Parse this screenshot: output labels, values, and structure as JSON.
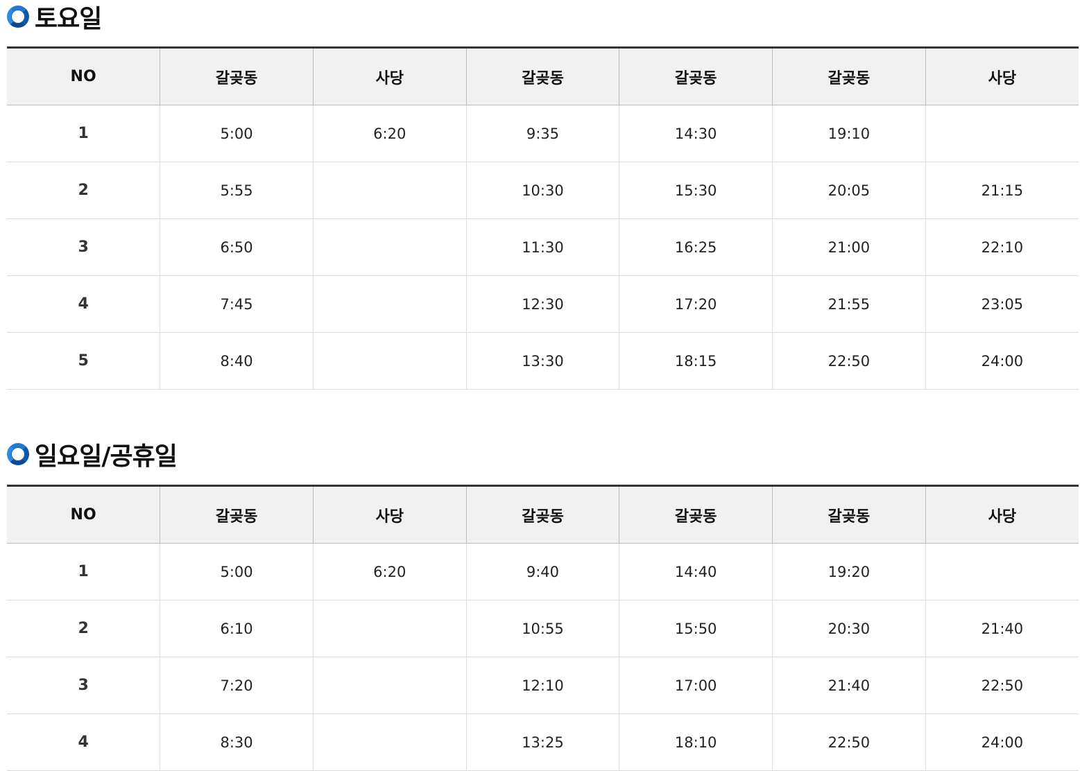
{
  "sections": [
    {
      "title": "토요일",
      "icon": "ring-bullet-icon",
      "headers": [
        "NO",
        "갈곶동",
        "사당",
        "갈곶동",
        "갈곶동",
        "갈곶동",
        "사당"
      ],
      "rows": [
        [
          "1",
          "5:00",
          "6:20",
          "9:35",
          "14:30",
          "19:10",
          ""
        ],
        [
          "2",
          "5:55",
          "",
          "10:30",
          "15:30",
          "20:05",
          "21:15"
        ],
        [
          "3",
          "6:50",
          "",
          "11:30",
          "16:25",
          "21:00",
          "22:10"
        ],
        [
          "4",
          "7:45",
          "",
          "12:30",
          "17:20",
          "21:55",
          "23:05"
        ],
        [
          "5",
          "8:40",
          "",
          "13:30",
          "18:15",
          "22:50",
          "24:00"
        ]
      ]
    },
    {
      "title": "일요일/공휴일",
      "icon": "ring-bullet-icon",
      "headers": [
        "NO",
        "갈곶동",
        "사당",
        "갈곶동",
        "갈곶동",
        "갈곶동",
        "사당"
      ],
      "rows": [
        [
          "1",
          "5:00",
          "6:20",
          "9:40",
          "14:40",
          "19:20",
          ""
        ],
        [
          "2",
          "6:10",
          "",
          "10:55",
          "15:50",
          "20:30",
          "21:40"
        ],
        [
          "3",
          "7:20",
          "",
          "12:10",
          "17:00",
          "21:40",
          "22:50"
        ],
        [
          "4",
          "8:30",
          "",
          "13:25",
          "18:10",
          "22:50",
          "24:00"
        ]
      ]
    }
  ]
}
